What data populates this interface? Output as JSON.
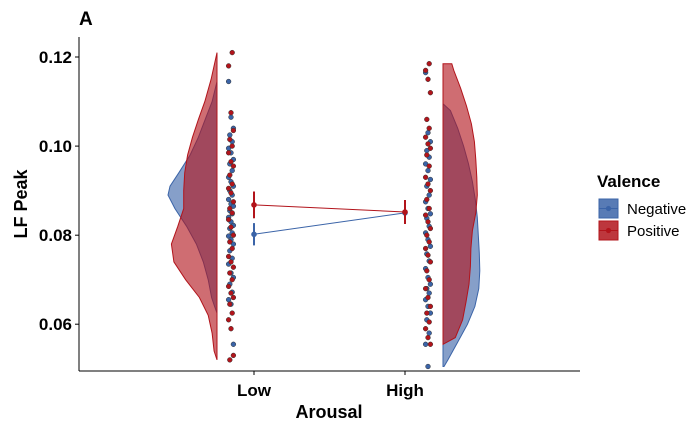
{
  "chart_data": {
    "type": "raincloud",
    "panel_label": "A",
    "xlabel": "Arousal",
    "ylabel": "LF Peak",
    "categories": [
      "Low",
      "High"
    ],
    "y_ticks": [
      0.06,
      0.08,
      0.1,
      0.12
    ],
    "y_tick_labels": [
      "0.06",
      "0.08",
      "0.10",
      "0.12"
    ],
    "ylim": [
      0.0495,
      0.1245
    ],
    "grid": false,
    "legend": {
      "title": "Valence",
      "position": "right",
      "entries": [
        {
          "name": "Negative",
          "color": "#3B64A8"
        },
        {
          "name": "Positive",
          "color": "#B2141B"
        }
      ]
    },
    "series": [
      {
        "name": "Negative",
        "color": "#3B64A8",
        "means": [
          0.0802,
          0.085
        ],
        "errors": [
          0.0025,
          0.0018
        ],
        "points": {
          "Low": [
            0.1145,
            0.1065,
            0.104,
            0.1025,
            0.101,
            0.0995,
            0.0985,
            0.097,
            0.096,
            0.0945,
            0.093,
            0.092,
            0.091,
            0.09,
            0.089,
            0.088,
            0.087,
            0.0865,
            0.0855,
            0.0848,
            0.084,
            0.083,
            0.0822,
            0.0815,
            0.0805,
            0.0798,
            0.079,
            0.078,
            0.0765,
            0.0748,
            0.0735,
            0.0715,
            0.0705,
            0.069,
            0.0672,
            0.0655,
            0.0645,
            0.0555
          ],
          "High": [
            0.1165,
            0.103,
            0.101,
            0.099,
            0.0975,
            0.096,
            0.0945,
            0.0925,
            0.091,
            0.089,
            0.0875,
            0.086,
            0.0848,
            0.0838,
            0.082,
            0.0805,
            0.079,
            0.0775,
            0.0758,
            0.0742,
            0.0725,
            0.0705,
            0.069,
            0.068,
            0.067,
            0.0655,
            0.064,
            0.0625,
            0.061,
            0.058,
            0.0555,
            0.0505
          ]
        },
        "density": {
          "Low": {
            "y": [
              0.0625,
              0.064,
              0.066,
              0.07,
              0.074,
              0.078,
              0.082,
              0.086,
              0.089,
              0.091,
              0.094,
              0.098,
              0.102,
              0.106,
              0.11,
              0.1145
            ],
            "d": [
              0.0,
              0.05,
              0.11,
              0.18,
              0.28,
              0.42,
              0.62,
              0.86,
              1.0,
              0.96,
              0.78,
              0.55,
              0.38,
              0.24,
              0.1,
              0.0
            ]
          },
          "High": {
            "y": [
              0.0505,
              0.052,
              0.056,
              0.06,
              0.064,
              0.068,
              0.072,
              0.076,
              0.08,
              0.084,
              0.088,
              0.092,
              0.096,
              0.1,
              0.104,
              0.108,
              0.1095
            ],
            "d": [
              0.02,
              0.1,
              0.3,
              0.5,
              0.65,
              0.73,
              0.75,
              0.74,
              0.72,
              0.7,
              0.66,
              0.6,
              0.52,
              0.42,
              0.3,
              0.15,
              0.0
            ]
          }
        }
      },
      {
        "name": "Positive",
        "color": "#B2141B",
        "means": [
          0.0868,
          0.0852
        ],
        "errors": [
          0.003,
          0.0027
        ],
        "points": {
          "Low": [
            0.121,
            0.118,
            0.1075,
            0.1035,
            0.1015,
            0.1,
            0.0985,
            0.0965,
            0.0955,
            0.0935,
            0.0915,
            0.0905,
            0.0895,
            0.0875,
            0.086,
            0.085,
            0.0835,
            0.0818,
            0.08,
            0.0785,
            0.077,
            0.0752,
            0.074,
            0.0728,
            0.0715,
            0.07,
            0.0685,
            0.067,
            0.066,
            0.0645,
            0.0625,
            0.061,
            0.059,
            0.053,
            0.052
          ],
          "High": [
            0.1185,
            0.117,
            0.115,
            0.112,
            0.106,
            0.104,
            0.102,
            0.1005,
            0.0995,
            0.098,
            0.0955,
            0.093,
            0.0915,
            0.09,
            0.088,
            0.086,
            0.0845,
            0.083,
            0.0815,
            0.08,
            0.0785,
            0.077,
            0.0755,
            0.074,
            0.072,
            0.07,
            0.068,
            0.066,
            0.064,
            0.0625,
            0.0605,
            0.059,
            0.057,
            0.0555
          ]
        },
        "density": {
          "Low": {
            "y": [
              0.052,
              0.054,
              0.058,
              0.062,
              0.066,
              0.07,
              0.074,
              0.078,
              0.082,
              0.086,
              0.09,
              0.094,
              0.098,
              0.102,
              0.106,
              0.11,
              0.115,
              0.121
            ],
            "d": [
              0.0,
              0.06,
              0.1,
              0.18,
              0.36,
              0.64,
              0.88,
              0.93,
              0.8,
              0.68,
              0.68,
              0.66,
              0.6,
              0.5,
              0.38,
              0.25,
              0.12,
              0.0
            ]
          },
          "High": {
            "y": [
              0.0555,
              0.057,
              0.061,
              0.065,
              0.069,
              0.073,
              0.077,
              0.081,
              0.085,
              0.089,
              0.093,
              0.097,
              0.101,
              0.105,
              0.109,
              0.113,
              0.117,
              0.1185
            ],
            "d": [
              0.0,
              0.25,
              0.4,
              0.47,
              0.53,
              0.56,
              0.57,
              0.6,
              0.67,
              0.7,
              0.69,
              0.67,
              0.64,
              0.58,
              0.48,
              0.36,
              0.22,
              0.18
            ]
          }
        }
      }
    ]
  }
}
